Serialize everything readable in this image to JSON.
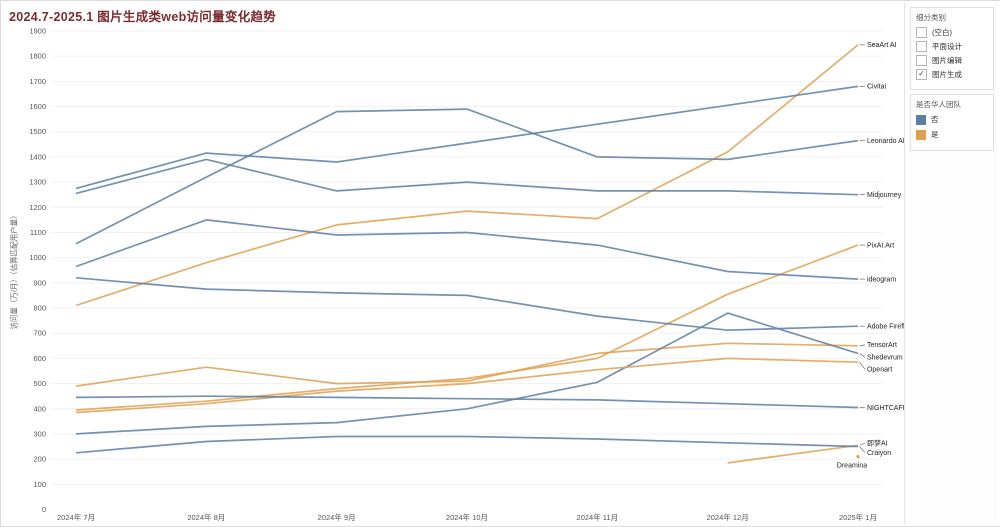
{
  "title": "2024.7-2025.1 图片生成类web访问量变化趋势",
  "colors": {
    "blue": "#5a7fa6",
    "orange": "#e09f4e",
    "grid": "#f1f1f1",
    "leader": "#555555"
  },
  "legend_filters": {
    "header": "细分类别",
    "items": [
      {
        "label": "(空白)",
        "checked": false
      },
      {
        "label": "平面设计",
        "checked": false
      },
      {
        "label": "图片编辑",
        "checked": false
      },
      {
        "label": "图片生成",
        "checked": true
      }
    ]
  },
  "legend_color": {
    "header": "是否华人团队",
    "items": [
      {
        "label": "否",
        "color": "#5a7fa6"
      },
      {
        "label": "是",
        "color": "#e09f4e"
      }
    ]
  },
  "chart_data": {
    "type": "line",
    "title": "2024.7-2025.1 图片生成类web访问量变化趋势",
    "xlabel": "",
    "ylabel": "访问量（万/月）（估算匹配用户量）",
    "x": [
      "2024年 7月",
      "2024年 8月",
      "2024年 9月",
      "2024年 10月",
      "2024年 11月",
      "2024年 12月",
      "2025年 1月"
    ],
    "ylim": [
      0,
      1900
    ],
    "yticks": [
      0,
      100,
      200,
      300,
      400,
      500,
      600,
      700,
      800,
      900,
      1000,
      1100,
      1200,
      1300,
      1400,
      1500,
      1600,
      1700,
      1800,
      1900
    ],
    "grid": true,
    "legend_position": "right-end-labels",
    "series": [
      {
        "name": "SeaArt AI",
        "team": "是",
        "color": "orange",
        "values": [
          810,
          980,
          1130,
          1185,
          1155,
          1420,
          1845
        ],
        "label_dy": 0
      },
      {
        "name": "Civitai",
        "team": "否",
        "color": "blue",
        "values": [
          1275,
          1415,
          1380,
          1455,
          1530,
          1605,
          1680
        ],
        "label_dy": 0
      },
      {
        "name": "Leonardo AI",
        "team": "否",
        "color": "blue",
        "values": [
          1055,
          1320,
          1580,
          1590,
          1400,
          1390,
          1465
        ],
        "label_dy": 0
      },
      {
        "name": "Midjourney",
        "team": "否",
        "color": "blue",
        "values": [
          1255,
          1390,
          1265,
          1300,
          1265,
          1265,
          1250
        ],
        "label_dy": 0
      },
      {
        "name": "PixAI.Art",
        "team": "是",
        "color": "orange",
        "values": [
          395,
          430,
          480,
          520,
          600,
          855,
          1050
        ],
        "label_dy": 0
      },
      {
        "name": "ideogram",
        "team": "否",
        "color": "blue",
        "values": [
          965,
          1150,
          1090,
          1100,
          1050,
          945,
          915
        ],
        "label_dy": 0
      },
      {
        "name": "Adobe Firefly",
        "team": "否",
        "color": "blue",
        "values": [
          920,
          875,
          860,
          850,
          768,
          712,
          728
        ],
        "label_dy": 0
      },
      {
        "name": "TensorArt",
        "team": "是",
        "color": "orange",
        "values": [
          490,
          565,
          500,
          510,
          620,
          660,
          650
        ],
        "label_dy": -1
      },
      {
        "name": "Shedevrum",
        "team": "否",
        "color": "blue",
        "values": [
          300,
          330,
          345,
          400,
          505,
          780,
          620
        ],
        "label_dy": 4
      },
      {
        "name": "Openart",
        "team": "是",
        "color": "orange",
        "values": [
          385,
          420,
          470,
          500,
          555,
          600,
          585
        ],
        "label_dy": 7
      },
      {
        "name": "NIGHTCAFE",
        "team": "否",
        "color": "blue",
        "values": [
          445,
          450,
          445,
          440,
          435,
          420,
          405
        ],
        "label_dy": 0
      },
      {
        "name": "即梦AI",
        "team": "是",
        "color": "orange",
        "values": [
          null,
          null,
          null,
          null,
          null,
          185,
          255
        ],
        "label_dy": -2
      },
      {
        "name": "Craiyon",
        "team": "否",
        "color": "blue",
        "values": [
          225,
          270,
          290,
          290,
          280,
          265,
          250
        ],
        "label_dy": 6
      },
      {
        "name": "Dreamina",
        "team": "是",
        "color": "orange",
        "values": [
          null,
          null,
          null,
          null,
          null,
          null,
          210
        ],
        "label_below": true
      }
    ]
  }
}
